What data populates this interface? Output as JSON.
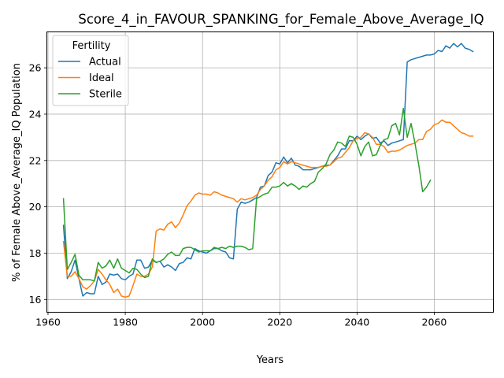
{
  "chart_data": {
    "type": "line",
    "title": "Score_4_in_FAVOUR_SPANKING_for_Female_Above_Average_IQ",
    "xlabel": "Years",
    "ylabel": "% of Female Above_Average_IQ Population",
    "xlim": [
      1959.7,
      2075.3
    ],
    "ylim": [
      15.45,
      27.55
    ],
    "xticks": [
      1960,
      1980,
      2000,
      2020,
      2040,
      2060
    ],
    "yticks": [
      16,
      18,
      20,
      22,
      24,
      26
    ],
    "grid": true,
    "legend": {
      "title": "Fertility",
      "position": "top-left"
    },
    "series": [
      {
        "name": "Actual",
        "color": "#1f77b4",
        "points": [
          [
            1964,
            19.2
          ],
          [
            1965,
            16.9
          ],
          [
            1966,
            17.2
          ],
          [
            1967,
            17.7
          ],
          [
            1968,
            16.9
          ],
          [
            1969,
            16.15
          ],
          [
            1970,
            16.3
          ],
          [
            1971,
            16.25
          ],
          [
            1972,
            16.25
          ],
          [
            1973,
            17.0
          ],
          [
            1974,
            16.65
          ],
          [
            1975,
            16.75
          ],
          [
            1976,
            17.1
          ],
          [
            1977,
            17.05
          ],
          [
            1978,
            17.1
          ],
          [
            1979,
            16.9
          ],
          [
            1980,
            16.85
          ],
          [
            1981,
            17.0
          ],
          [
            1982,
            17.1
          ],
          [
            1983,
            17.7
          ],
          [
            1984,
            17.7
          ],
          [
            1985,
            17.35
          ],
          [
            1986,
            17.4
          ],
          [
            1987,
            17.7
          ],
          [
            1988,
            17.6
          ],
          [
            1989,
            17.65
          ],
          [
            1990,
            17.4
          ],
          [
            1991,
            17.5
          ],
          [
            1992,
            17.4
          ],
          [
            1993,
            17.25
          ],
          [
            1994,
            17.55
          ],
          [
            1995,
            17.6
          ],
          [
            1996,
            17.8
          ],
          [
            1997,
            17.75
          ],
          [
            1998,
            18.2
          ],
          [
            1999,
            18.1
          ],
          [
            2000,
            18.05
          ],
          [
            2001,
            18.0
          ],
          [
            2002,
            18.1
          ],
          [
            2003,
            18.2
          ],
          [
            2004,
            18.2
          ],
          [
            2005,
            18.1
          ],
          [
            2006,
            18.05
          ],
          [
            2007,
            17.8
          ],
          [
            2008,
            17.75
          ],
          [
            2009,
            19.9
          ],
          [
            2010,
            20.2
          ],
          [
            2011,
            20.15
          ],
          [
            2012,
            20.2
          ],
          [
            2013,
            20.3
          ],
          [
            2014,
            20.4
          ],
          [
            2015,
            20.85
          ],
          [
            2016,
            20.9
          ],
          [
            2017,
            21.35
          ],
          [
            2018,
            21.5
          ],
          [
            2019,
            21.9
          ],
          [
            2020,
            21.85
          ],
          [
            2021,
            22.15
          ],
          [
            2022,
            21.9
          ],
          [
            2023,
            22.1
          ],
          [
            2024,
            21.8
          ],
          [
            2025,
            21.75
          ],
          [
            2026,
            21.6
          ],
          [
            2027,
            21.6
          ],
          [
            2028,
            21.6
          ],
          [
            2029,
            21.65
          ],
          [
            2030,
            21.7
          ],
          [
            2031,
            21.75
          ],
          [
            2032,
            21.8
          ],
          [
            2033,
            21.8
          ],
          [
            2034,
            22.0
          ],
          [
            2035,
            22.2
          ],
          [
            2036,
            22.5
          ],
          [
            2037,
            22.5
          ],
          [
            2038,
            22.85
          ],
          [
            2039,
            22.85
          ],
          [
            2040,
            23.05
          ],
          [
            2041,
            22.9
          ],
          [
            2042,
            23.05
          ],
          [
            2043,
            23.15
          ],
          [
            2044,
            22.95
          ],
          [
            2045,
            23.0
          ],
          [
            2046,
            22.75
          ],
          [
            2047,
            22.85
          ],
          [
            2048,
            22.65
          ],
          [
            2049,
            22.75
          ],
          [
            2050,
            22.8
          ],
          [
            2051,
            22.85
          ],
          [
            2052,
            22.9
          ],
          [
            2053,
            26.25
          ],
          [
            2054,
            26.35
          ],
          [
            2055,
            26.4
          ],
          [
            2056,
            26.45
          ],
          [
            2057,
            26.5
          ],
          [
            2058,
            26.55
          ],
          [
            2059,
            26.55
          ],
          [
            2060,
            26.6
          ],
          [
            2061,
            26.75
          ],
          [
            2062,
            26.7
          ],
          [
            2063,
            26.95
          ],
          [
            2064,
            26.85
          ],
          [
            2065,
            27.05
          ],
          [
            2066,
            26.9
          ],
          [
            2067,
            27.05
          ],
          [
            2068,
            26.85
          ],
          [
            2069,
            26.8
          ],
          [
            2070,
            26.7
          ]
        ]
      },
      {
        "name": "Ideal",
        "color": "#ff7f0e",
        "points": [
          [
            1964,
            18.5
          ],
          [
            1965,
            17.0
          ],
          [
            1966,
            17.0
          ],
          [
            1967,
            17.2
          ],
          [
            1968,
            16.9
          ],
          [
            1969,
            16.55
          ],
          [
            1970,
            16.45
          ],
          [
            1971,
            16.6
          ],
          [
            1972,
            16.8
          ],
          [
            1973,
            17.3
          ],
          [
            1974,
            17.1
          ],
          [
            1975,
            16.85
          ],
          [
            1976,
            16.65
          ],
          [
            1977,
            16.3
          ],
          [
            1978,
            16.45
          ],
          [
            1979,
            16.15
          ],
          [
            1980,
            16.1
          ],
          [
            1981,
            16.15
          ],
          [
            1982,
            16.6
          ],
          [
            1983,
            17.1
          ],
          [
            1984,
            17.0
          ],
          [
            1985,
            17.0
          ],
          [
            1986,
            17.1
          ],
          [
            1987,
            17.4
          ],
          [
            1988,
            18.95
          ],
          [
            1989,
            19.05
          ],
          [
            1990,
            19.0
          ],
          [
            1991,
            19.25
          ],
          [
            1992,
            19.35
          ],
          [
            1993,
            19.1
          ],
          [
            1994,
            19.3
          ],
          [
            1995,
            19.65
          ],
          [
            1996,
            20.05
          ],
          [
            1997,
            20.25
          ],
          [
            1998,
            20.5
          ],
          [
            1999,
            20.6
          ],
          [
            2000,
            20.55
          ],
          [
            2001,
            20.55
          ],
          [
            2002,
            20.5
          ],
          [
            2003,
            20.65
          ],
          [
            2004,
            20.6
          ],
          [
            2005,
            20.5
          ],
          [
            2006,
            20.45
          ],
          [
            2007,
            20.4
          ],
          [
            2008,
            20.35
          ],
          [
            2009,
            20.2
          ],
          [
            2010,
            20.35
          ],
          [
            2011,
            20.3
          ],
          [
            2012,
            20.35
          ],
          [
            2013,
            20.4
          ],
          [
            2014,
            20.5
          ],
          [
            2015,
            20.75
          ],
          [
            2016,
            20.9
          ],
          [
            2017,
            21.15
          ],
          [
            2018,
            21.3
          ],
          [
            2019,
            21.6
          ],
          [
            2020,
            21.7
          ],
          [
            2021,
            21.95
          ],
          [
            2022,
            21.85
          ],
          [
            2023,
            21.95
          ],
          [
            2024,
            21.9
          ],
          [
            2025,
            21.85
          ],
          [
            2026,
            21.8
          ],
          [
            2027,
            21.75
          ],
          [
            2028,
            21.7
          ],
          [
            2029,
            21.7
          ],
          [
            2030,
            21.7
          ],
          [
            2031,
            21.75
          ],
          [
            2032,
            21.75
          ],
          [
            2033,
            21.8
          ],
          [
            2034,
            21.95
          ],
          [
            2035,
            22.1
          ],
          [
            2036,
            22.15
          ],
          [
            2037,
            22.35
          ],
          [
            2038,
            22.55
          ],
          [
            2039,
            22.85
          ],
          [
            2040,
            22.95
          ],
          [
            2041,
            23.0
          ],
          [
            2042,
            23.2
          ],
          [
            2043,
            23.15
          ],
          [
            2044,
            23.0
          ],
          [
            2045,
            22.7
          ],
          [
            2046,
            22.7
          ],
          [
            2047,
            22.6
          ],
          [
            2048,
            22.35
          ],
          [
            2049,
            22.4
          ],
          [
            2050,
            22.4
          ],
          [
            2051,
            22.45
          ],
          [
            2052,
            22.55
          ],
          [
            2053,
            22.65
          ],
          [
            2054,
            22.7
          ],
          [
            2055,
            22.75
          ],
          [
            2056,
            22.9
          ],
          [
            2057,
            22.9
          ],
          [
            2058,
            23.25
          ],
          [
            2059,
            23.35
          ],
          [
            2060,
            23.55
          ],
          [
            2061,
            23.6
          ],
          [
            2062,
            23.75
          ],
          [
            2063,
            23.65
          ],
          [
            2064,
            23.65
          ],
          [
            2065,
            23.5
          ],
          [
            2066,
            23.35
          ],
          [
            2067,
            23.2
          ],
          [
            2068,
            23.15
          ],
          [
            2069,
            23.05
          ],
          [
            2070,
            23.05
          ]
        ]
      },
      {
        "name": "Sterile",
        "color": "#2ca02c",
        "points": [
          [
            1964,
            20.35
          ],
          [
            1965,
            17.3
          ],
          [
            1966,
            17.6
          ],
          [
            1967,
            17.95
          ],
          [
            1968,
            17.05
          ],
          [
            1969,
            16.85
          ],
          [
            1970,
            16.85
          ],
          [
            1971,
            16.85
          ],
          [
            1972,
            16.8
          ],
          [
            1973,
            17.6
          ],
          [
            1974,
            17.35
          ],
          [
            1975,
            17.45
          ],
          [
            1976,
            17.7
          ],
          [
            1977,
            17.35
          ],
          [
            1978,
            17.75
          ],
          [
            1979,
            17.35
          ],
          [
            1980,
            17.25
          ],
          [
            1981,
            17.15
          ],
          [
            1982,
            17.35
          ],
          [
            1983,
            17.3
          ],
          [
            1984,
            17.1
          ],
          [
            1985,
            16.95
          ],
          [
            1986,
            17.0
          ],
          [
            1987,
            17.75
          ],
          [
            1988,
            17.6
          ],
          [
            1989,
            17.65
          ],
          [
            1990,
            17.75
          ],
          [
            1991,
            17.95
          ],
          [
            1992,
            18.05
          ],
          [
            1993,
            17.9
          ],
          [
            1994,
            17.9
          ],
          [
            1995,
            18.2
          ],
          [
            1996,
            18.25
          ],
          [
            1997,
            18.25
          ],
          [
            1998,
            18.15
          ],
          [
            1999,
            18.05
          ],
          [
            2000,
            18.1
          ],
          [
            2001,
            18.1
          ],
          [
            2002,
            18.1
          ],
          [
            2003,
            18.25
          ],
          [
            2004,
            18.2
          ],
          [
            2005,
            18.25
          ],
          [
            2006,
            18.2
          ],
          [
            2007,
            18.3
          ],
          [
            2008,
            18.25
          ],
          [
            2009,
            18.3
          ],
          [
            2010,
            18.3
          ],
          [
            2011,
            18.25
          ],
          [
            2012,
            18.15
          ],
          [
            2013,
            18.2
          ],
          [
            2014,
            20.35
          ],
          [
            2015,
            20.45
          ],
          [
            2016,
            20.55
          ],
          [
            2017,
            20.6
          ],
          [
            2018,
            20.85
          ],
          [
            2019,
            20.85
          ],
          [
            2020,
            20.9
          ],
          [
            2021,
            21.05
          ],
          [
            2022,
            20.9
          ],
          [
            2023,
            21.0
          ],
          [
            2024,
            20.9
          ],
          [
            2025,
            20.75
          ],
          [
            2026,
            20.9
          ],
          [
            2027,
            20.85
          ],
          [
            2028,
            21.0
          ],
          [
            2029,
            21.1
          ],
          [
            2030,
            21.5
          ],
          [
            2031,
            21.65
          ],
          [
            2032,
            21.85
          ],
          [
            2033,
            22.25
          ],
          [
            2034,
            22.45
          ],
          [
            2035,
            22.8
          ],
          [
            2036,
            22.75
          ],
          [
            2037,
            22.6
          ],
          [
            2038,
            23.05
          ],
          [
            2039,
            23.0
          ],
          [
            2040,
            22.7
          ],
          [
            2041,
            22.2
          ],
          [
            2042,
            22.6
          ],
          [
            2043,
            22.8
          ],
          [
            2044,
            22.2
          ],
          [
            2045,
            22.25
          ],
          [
            2046,
            22.65
          ],
          [
            2047,
            22.9
          ],
          [
            2048,
            22.95
          ],
          [
            2049,
            23.5
          ],
          [
            2050,
            23.6
          ],
          [
            2051,
            23.1
          ],
          [
            2052,
            24.25
          ],
          [
            2053,
            23.0
          ],
          [
            2054,
            23.6
          ],
          [
            2055,
            22.75
          ],
          [
            2056,
            21.8
          ],
          [
            2057,
            20.65
          ],
          [
            2058,
            20.85
          ],
          [
            2059,
            21.15
          ]
        ]
      }
    ]
  }
}
